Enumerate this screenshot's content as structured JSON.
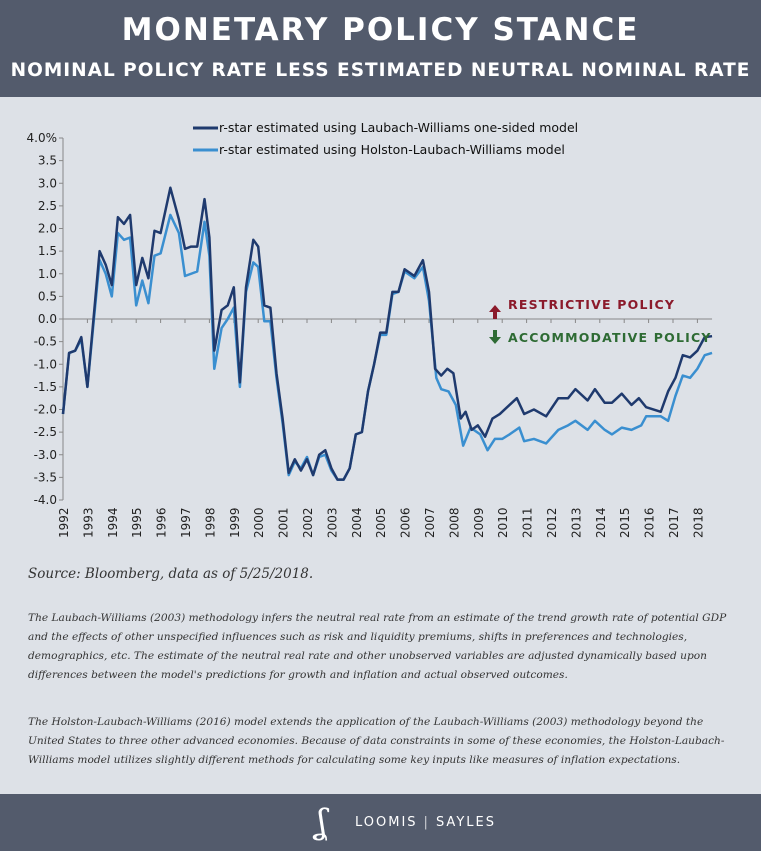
{
  "header": {
    "title": "MONETARY POLICY STANCE",
    "subtitle": "NOMINAL POLICY RATE LESS ESTIMATED NEUTRAL NOMINAL RATE"
  },
  "chart_data": {
    "type": "line",
    "title": "MONETARY POLICY STANCE",
    "subtitle": "NOMINAL POLICY RATE LESS ESTIMATED NEUTRAL NOMINAL RATE",
    "ylim": [
      -4.0,
      4.0
    ],
    "xlim": [
      1992,
      2018.6
    ],
    "y_ticks": [
      "4.0%",
      "3.5",
      "3.0",
      "2.5",
      "2.0",
      "1.5",
      "1.0",
      "0.5",
      "0.0",
      "-0.5",
      "-1.0",
      "-1.5",
      "-2.0",
      "-2.5",
      "-3.0",
      "-3.5",
      "-4.0"
    ],
    "x_ticks": [
      "1992",
      "1993",
      "1994",
      "1995",
      "1996",
      "1997",
      "1998",
      "1999",
      "2000",
      "2001",
      "2002",
      "2003",
      "2004",
      "2005",
      "2006",
      "2007",
      "2008",
      "2009",
      "2010",
      "2011",
      "2012",
      "2013",
      "2014",
      "2015",
      "2016",
      "2017",
      "2018"
    ],
    "legend_position": "top-center",
    "annotations": {
      "restrictive": "RESTRICTIVE POLICY",
      "accommodative": "ACCOMMODATIVE POLICY",
      "restrictive_color": "#8b1a2b",
      "accommodative_color": "#2e6b34"
    },
    "series": [
      {
        "name": "r-star estimated using Laubach-Williams one-sided model",
        "color": "#1f3a6e",
        "points": [
          [
            1992,
            -2.1
          ],
          [
            1992.25,
            -0.75
          ],
          [
            1992.5,
            -0.7
          ],
          [
            1992.75,
            -0.4
          ],
          [
            1993,
            -1.5
          ],
          [
            1993.5,
            1.5
          ],
          [
            1993.75,
            1.2
          ],
          [
            1994,
            0.75
          ],
          [
            1994.25,
            2.25
          ],
          [
            1994.5,
            2.1
          ],
          [
            1994.75,
            2.3
          ],
          [
            1995,
            0.75
          ],
          [
            1995.25,
            1.35
          ],
          [
            1995.5,
            0.9
          ],
          [
            1995.75,
            1.95
          ],
          [
            1996,
            1.9
          ],
          [
            1996.4,
            2.9
          ],
          [
            1996.75,
            2.2
          ],
          [
            1997,
            1.55
          ],
          [
            1997.25,
            1.6
          ],
          [
            1997.5,
            1.6
          ],
          [
            1997.8,
            2.65
          ],
          [
            1998,
            1.8
          ],
          [
            1998.2,
            -0.7
          ],
          [
            1998.5,
            0.2
          ],
          [
            1998.75,
            0.3
          ],
          [
            1999,
            0.7
          ],
          [
            1999.25,
            -1.4
          ],
          [
            1999.5,
            0.7
          ],
          [
            1999.8,
            1.75
          ],
          [
            2000,
            1.6
          ],
          [
            2000.25,
            0.3
          ],
          [
            2000.5,
            0.25
          ],
          [
            2000.75,
            -1.2
          ],
          [
            2001,
            -2.2
          ],
          [
            2001.25,
            -3.4
          ],
          [
            2001.5,
            -3.1
          ],
          [
            2001.75,
            -3.35
          ],
          [
            2002,
            -3.1
          ],
          [
            2002.25,
            -3.45
          ],
          [
            2002.5,
            -3.0
          ],
          [
            2002.75,
            -2.9
          ],
          [
            2003,
            -3.3
          ],
          [
            2003.25,
            -3.55
          ],
          [
            2003.5,
            -3.55
          ],
          [
            2003.75,
            -3.3
          ],
          [
            2004,
            -2.55
          ],
          [
            2004.25,
            -2.5
          ],
          [
            2004.5,
            -1.6
          ],
          [
            2004.75,
            -1.0
          ],
          [
            2005,
            -0.3
          ],
          [
            2005.25,
            -0.3
          ],
          [
            2005.5,
            0.6
          ],
          [
            2005.75,
            0.6
          ],
          [
            2006,
            1.1
          ],
          [
            2006.4,
            0.95
          ],
          [
            2006.75,
            1.3
          ],
          [
            2007,
            0.6
          ],
          [
            2007.25,
            -1.1
          ],
          [
            2007.5,
            -1.25
          ],
          [
            2007.75,
            -1.1
          ],
          [
            2008,
            -1.2
          ],
          [
            2008.3,
            -2.2
          ],
          [
            2008.5,
            -2.05
          ],
          [
            2008.75,
            -2.45
          ],
          [
            2009,
            -2.35
          ],
          [
            2009.3,
            -2.6
          ],
          [
            2009.6,
            -2.2
          ],
          [
            2009.9,
            -2.1
          ],
          [
            2010.3,
            -1.9
          ],
          [
            2010.6,
            -1.75
          ],
          [
            2010.9,
            -2.1
          ],
          [
            2011.3,
            -2.0
          ],
          [
            2011.8,
            -2.15
          ],
          [
            2012.3,
            -1.75
          ],
          [
            2012.7,
            -1.75
          ],
          [
            2013.0,
            -1.55
          ],
          [
            2013.5,
            -1.8
          ],
          [
            2013.8,
            -1.55
          ],
          [
            2014.2,
            -1.85
          ],
          [
            2014.5,
            -1.85
          ],
          [
            2014.9,
            -1.65
          ],
          [
            2015.3,
            -1.9
          ],
          [
            2015.6,
            -1.75
          ],
          [
            2015.9,
            -1.95
          ],
          [
            2016.5,
            -2.05
          ],
          [
            2016.8,
            -1.6
          ],
          [
            2017.1,
            -1.3
          ],
          [
            2017.4,
            -0.8
          ],
          [
            2017.7,
            -0.85
          ],
          [
            2018.0,
            -0.7
          ],
          [
            2018.3,
            -0.4
          ],
          [
            2018.6,
            -0.38
          ]
        ]
      },
      {
        "name": "r-star estimated using Holston-Laubach-Williams model",
        "color": "#3a8fd0",
        "points": [
          [
            1992,
            -2.1
          ],
          [
            1992.25,
            -0.75
          ],
          [
            1992.5,
            -0.7
          ],
          [
            1992.75,
            -0.45
          ],
          [
            1993,
            -1.5
          ],
          [
            1993.5,
            1.3
          ],
          [
            1993.75,
            1.0
          ],
          [
            1994,
            0.5
          ],
          [
            1994.25,
            1.9
          ],
          [
            1994.5,
            1.75
          ],
          [
            1994.75,
            1.8
          ],
          [
            1995,
            0.3
          ],
          [
            1995.25,
            0.85
          ],
          [
            1995.5,
            0.35
          ],
          [
            1995.75,
            1.4
          ],
          [
            1996,
            1.45
          ],
          [
            1996.4,
            2.3
          ],
          [
            1996.75,
            1.9
          ],
          [
            1997,
            0.95
          ],
          [
            1997.5,
            1.05
          ],
          [
            1997.8,
            2.15
          ],
          [
            1998,
            1.4
          ],
          [
            1998.2,
            -1.1
          ],
          [
            1998.5,
            -0.2
          ],
          [
            1998.75,
            0.0
          ],
          [
            1999,
            0.25
          ],
          [
            1999.25,
            -1.5
          ],
          [
            1999.5,
            0.6
          ],
          [
            1999.8,
            1.25
          ],
          [
            2000,
            1.15
          ],
          [
            2000.25,
            -0.05
          ],
          [
            2000.5,
            -0.05
          ],
          [
            2000.75,
            -1.3
          ],
          [
            2001,
            -2.3
          ],
          [
            2001.25,
            -3.45
          ],
          [
            2001.5,
            -3.15
          ],
          [
            2001.75,
            -3.3
          ],
          [
            2002,
            -3.05
          ],
          [
            2002.25,
            -3.45
          ],
          [
            2002.5,
            -3.05
          ],
          [
            2002.75,
            -3.0
          ],
          [
            2003,
            -3.35
          ],
          [
            2003.25,
            -3.55
          ],
          [
            2003.5,
            -3.55
          ],
          [
            2003.75,
            -3.3
          ],
          [
            2004,
            -2.55
          ],
          [
            2004.25,
            -2.5
          ],
          [
            2004.5,
            -1.6
          ],
          [
            2004.75,
            -1.0
          ],
          [
            2005,
            -0.35
          ],
          [
            2005.25,
            -0.35
          ],
          [
            2005.5,
            0.55
          ],
          [
            2005.75,
            0.6
          ],
          [
            2006,
            1.05
          ],
          [
            2006.4,
            0.9
          ],
          [
            2006.75,
            1.15
          ],
          [
            2007,
            0.4
          ],
          [
            2007.3,
            -1.3
          ],
          [
            2007.5,
            -1.55
          ],
          [
            2007.8,
            -1.6
          ],
          [
            2008.1,
            -1.9
          ],
          [
            2008.4,
            -2.8
          ],
          [
            2008.7,
            -2.4
          ],
          [
            2009.1,
            -2.55
          ],
          [
            2009.4,
            -2.9
          ],
          [
            2009.7,
            -2.65
          ],
          [
            2010.0,
            -2.65
          ],
          [
            2010.3,
            -2.55
          ],
          [
            2010.7,
            -2.4
          ],
          [
            2010.9,
            -2.7
          ],
          [
            2011.3,
            -2.65
          ],
          [
            2011.8,
            -2.75
          ],
          [
            2012.3,
            -2.45
          ],
          [
            2012.7,
            -2.35
          ],
          [
            2013.0,
            -2.25
          ],
          [
            2013.5,
            -2.45
          ],
          [
            2013.8,
            -2.25
          ],
          [
            2014.2,
            -2.45
          ],
          [
            2014.5,
            -2.55
          ],
          [
            2014.9,
            -2.4
          ],
          [
            2015.3,
            -2.45
          ],
          [
            2015.7,
            -2.35
          ],
          [
            2015.9,
            -2.15
          ],
          [
            2016.5,
            -2.15
          ],
          [
            2016.8,
            -2.25
          ],
          [
            2017.1,
            -1.7
          ],
          [
            2017.4,
            -1.25
          ],
          [
            2017.7,
            -1.3
          ],
          [
            2018.0,
            -1.1
          ],
          [
            2018.3,
            -0.8
          ],
          [
            2018.6,
            -0.75
          ]
        ]
      }
    ]
  },
  "source": "Source: Bloomberg, data as of 5/25/2018.",
  "notes": [
    "The Laubach-Williams (2003) methodology infers the neutral real rate from an estimate of the trend growth rate of potential GDP and the effects of other unspecified influences such as risk and liquidity premiums, shifts in preferences and technologies, demographics, etc. The estimate of the neutral real rate and other unobserved variables are adjusted dynamically based upon differences between the model's predictions for growth and inflation and actual observed outcomes.",
    "The Holston-Laubach-Williams (2016) model extends the application of the Laubach-Williams (2003) methodology beyond the United States to three other advanced economies. Because of data constraints in some of these economies, the Holston-Laubach-Williams model utilizes slightly different methods for calculating some key inputs like measures of inflation expectations."
  ],
  "footer": {
    "logo_mark": "LS",
    "logo_text_left": "LOOMIS",
    "logo_text_right": "SAYLES"
  }
}
